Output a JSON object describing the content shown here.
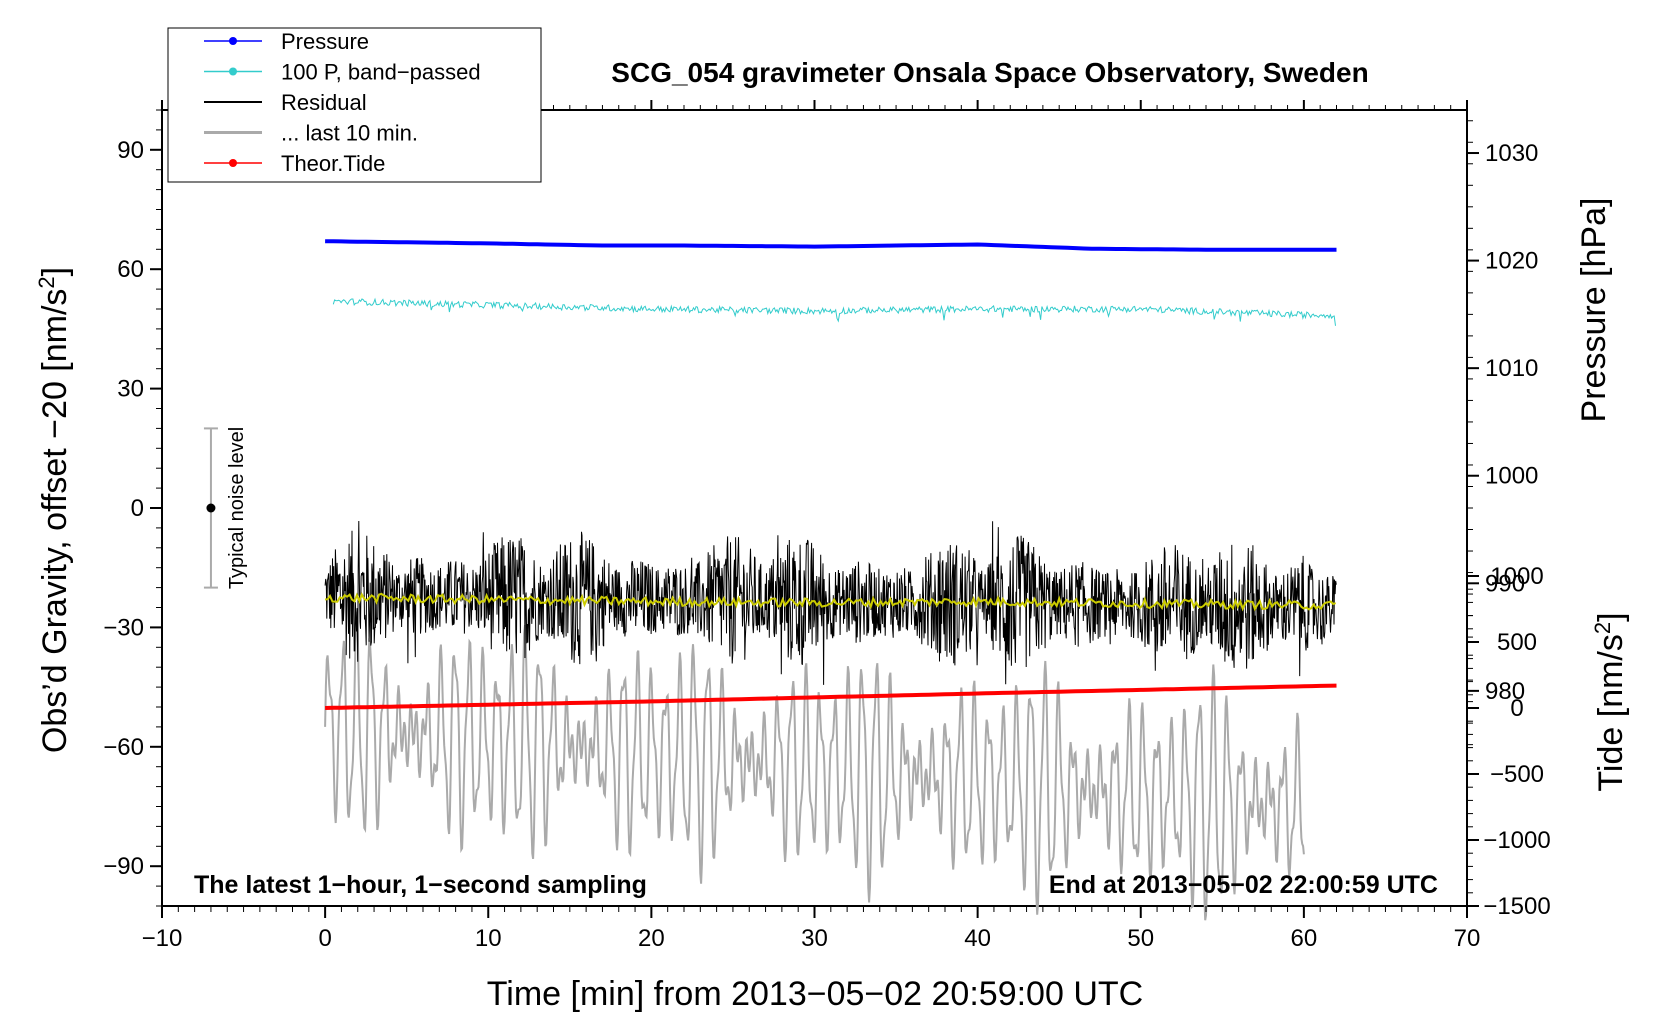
{
  "chart_data": {
    "type": "line",
    "title": "SCG_054 gravimeter Onsala Space Observatory, Sweden",
    "xlabel": "Time [min] from 2013−05−02 20:59:00 UTC",
    "ylabel_left": "Obs’d Gravity, offset −20 [nm/s",
    "ylabel_left_sup": "2",
    "ylabel_left_end": "]",
    "ylabel_right_top": "Pressure [hPa]",
    "ylabel_right_bottom": "Tide [nm/s",
    "ylabel_right_bottom_sup": "2",
    "ylabel_right_bottom_end": "]",
    "xlim": [
      -10,
      70
    ],
    "ylim_left": [
      -100,
      100
    ],
    "ylim_pressure": [
      960,
      1034
    ],
    "ylim_tide": [
      -1500,
      1500
    ],
    "x_ticks": [
      "−10",
      "0",
      "10",
      "20",
      "30",
      "40",
      "50",
      "60",
      "70"
    ],
    "y_left_ticks": [
      "90",
      "60",
      "30",
      "0",
      "−30",
      "−60",
      "−90"
    ],
    "pressure_ticks": [
      "1030",
      "1020",
      "1010",
      "1000",
      "990",
      "980"
    ],
    "tide_ticks": [
      "1000",
      "500",
      "0",
      "−500",
      "−1000",
      "−1500"
    ],
    "note_left": "The latest 1−hour, 1−second sampling",
    "note_right": "End at 2013−05−02 22:00:59 UTC",
    "noise_label": "Typical noise level",
    "noise_bar": {
      "x": -7,
      "center": 0,
      "low": -20,
      "high": 20
    },
    "legend": [
      {
        "label": "Pressure",
        "color": "#0000ff",
        "marker": true
      },
      {
        "label": "100 P, band−passed",
        "color": "#33cccc",
        "marker": true
      },
      {
        "label": "Residual",
        "color": "#000000",
        "marker": false
      },
      {
        "label": "... last 10 min.",
        "color": "#aaaaaa",
        "marker": false
      },
      {
        "label": "Theor.Tide",
        "color": "#ff0000",
        "marker": true
      }
    ],
    "series": [
      {
        "name": "Pressure",
        "axis": "pressure",
        "color": "#0000ff",
        "x": [
          0,
          10,
          17,
          22,
          30,
          40,
          47,
          55,
          62
        ],
        "y": [
          1021.8,
          1021.6,
          1021.4,
          1021.4,
          1021.3,
          1021.5,
          1021.1,
          1021.0,
          1021.0
        ]
      },
      {
        "name": "100 P, band-passed",
        "axis": "left",
        "color": "#33cccc",
        "x": [
          0,
          10,
          20,
          30,
          40,
          50,
          60,
          62
        ],
        "y": [
          52,
          51,
          50,
          49.5,
          50,
          50,
          48.5,
          48.5
        ]
      },
      {
        "name": "Residual",
        "axis": "left",
        "color": "#000000",
        "x": [
          0,
          62
        ],
        "y": [
          -22,
          -25
        ],
        "amplitude": 18
      },
      {
        "name": "Residual smoothed",
        "axis": "left",
        "color": "#cccc00",
        "x": [
          0,
          10,
          20,
          30,
          40,
          50,
          62
        ],
        "y": [
          -22.5,
          -23,
          -23.5,
          -23.8,
          -23.5,
          -24,
          -24.5
        ]
      },
      {
        "name": "... last 10 min.",
        "axis": "left",
        "color": "#aaaaaa",
        "x": [
          0,
          60
        ],
        "y": [
          -55,
          -75
        ],
        "amplitude": 30
      },
      {
        "name": "Theor.Tide",
        "axis": "tide",
        "color": "#ff0000",
        "x": [
          0,
          20,
          40,
          62
        ],
        "y": [
          0,
          50,
          110,
          170
        ]
      }
    ]
  }
}
